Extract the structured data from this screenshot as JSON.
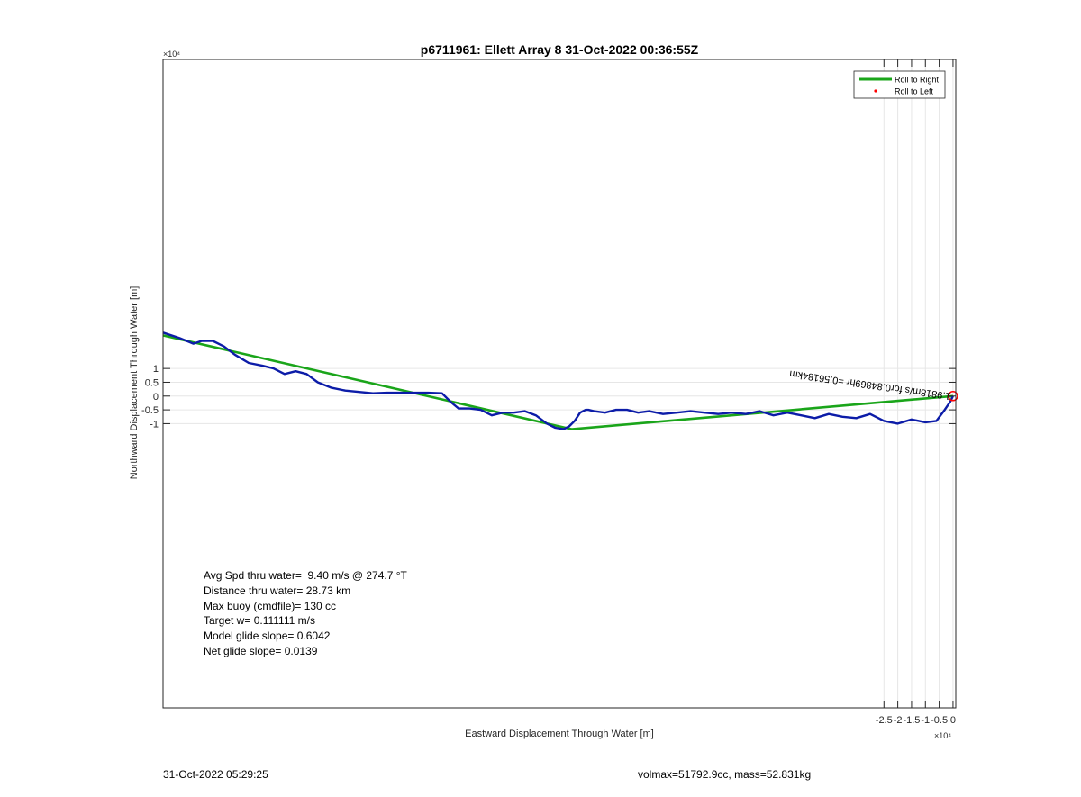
{
  "chart_data": {
    "type": "line",
    "title": "p6711961: Ellett Array 8 31-Oct-2022 00:36:55Z",
    "xlabel": "Eastward Displacement Through Water [m]",
    "ylabel": "Northward Displacement Through Water [m]",
    "xlim": [
      -28.6,
      0.1
    ],
    "ylim": [
      -11.3,
      12.2
    ],
    "axis_multiplier": "×10⁴",
    "x_axis_multiplier": "×10⁴",
    "y_axis_multiplier": "×10⁴",
    "xticks": [
      -2.5,
      -2,
      -1.5,
      -1,
      -0.5,
      0
    ],
    "xtick_labels": [
      "-2.5",
      "-2",
      "-1.5",
      "-1",
      "-0.5",
      "0"
    ],
    "yticks": [
      -1,
      -0.5,
      0,
      0.5,
      1
    ],
    "ytick_labels": [
      "-1",
      "-0.5",
      "0",
      "0.5",
      "1"
    ],
    "grid": true,
    "legend": {
      "placement": "top-right",
      "entries": [
        {
          "name": "Roll to Right",
          "color": "#1aa51a",
          "style": "line"
        },
        {
          "name": "Roll to Left",
          "color": "#ff0000",
          "style": "point"
        }
      ]
    },
    "series": [
      {
        "role": "dead-reckoned track",
        "color": "#1aa51a",
        "x": [
          -28.6,
          -13.8,
          0.0
        ],
        "y": [
          2.2,
          -1.2,
          0.0
        ]
      },
      {
        "role": "measured track",
        "color": "#0c1ca8",
        "x": [
          -28.6,
          -28.0,
          -27.5,
          -27.2,
          -26.8,
          -26.4,
          -26.0,
          -25.5,
          -25.0,
          -24.6,
          -24.2,
          -23.8,
          -23.4,
          -23.0,
          -22.5,
          -22.0,
          -21.5,
          -21.0,
          -20.5,
          -20.0,
          -19.5,
          -19.0,
          -18.5,
          -18.2,
          -17.9,
          -17.5,
          -17.1,
          -16.7,
          -16.3,
          -15.9,
          -15.5,
          -15.1,
          -14.7,
          -14.4,
          -14.1,
          -13.9,
          -13.7,
          -13.5,
          -13.3,
          -13.2,
          -13.0,
          -12.6,
          -12.2,
          -11.8,
          -11.4,
          -11.0,
          -10.5,
          -10.0,
          -9.5,
          -9.0,
          -8.5,
          -8.0,
          -7.5,
          -7.0,
          -6.5,
          -6.0,
          -5.5,
          -5.0,
          -4.5,
          -4.0,
          -3.5,
          -3.0,
          -2.5,
          -2.0,
          -1.5,
          -1.0,
          -0.6,
          -0.3,
          -0.1,
          0.0
        ],
        "y": [
          2.3,
          2.1,
          1.9,
          2.0,
          2.0,
          1.8,
          1.5,
          1.2,
          1.1,
          1.0,
          0.8,
          0.9,
          0.8,
          0.5,
          0.3,
          0.2,
          0.15,
          0.1,
          0.12,
          0.12,
          0.12,
          0.12,
          0.1,
          -0.2,
          -0.45,
          -0.45,
          -0.5,
          -0.7,
          -0.6,
          -0.6,
          -0.55,
          -0.7,
          -1.0,
          -1.15,
          -1.2,
          -1.1,
          -0.9,
          -0.6,
          -0.5,
          -0.5,
          -0.55,
          -0.6,
          -0.5,
          -0.5,
          -0.6,
          -0.55,
          -0.65,
          -0.6,
          -0.55,
          -0.6,
          -0.65,
          -0.6,
          -0.65,
          -0.55,
          -0.7,
          -0.6,
          -0.7,
          -0.8,
          -0.65,
          -0.75,
          -0.8,
          -0.65,
          -0.9,
          -1.0,
          -0.85,
          -0.95,
          -0.9,
          -0.5,
          -0.2,
          0.0
        ]
      }
    ],
    "end_marker": {
      "x": 0.0,
      "y": 0.0,
      "color": "#ff0000",
      "shape": "circle"
    },
    "rotated_annotation": "1.9818m/s for0.84869hr =0.56184km",
    "annotation_origin": {
      "x": 0.0,
      "y": 0.0,
      "angle_deg": 188
    },
    "stats": [
      "Avg Spd thru water=  9.40 m/s @ 274.7 °T",
      "Distance thru water= 28.73 km",
      "Max buoy (cmdfile)= 130 cc",
      "Target w= 0.111111 m/s",
      "Model glide slope= 0.6042",
      "Net glide slope= 0.0139"
    ]
  },
  "footer": {
    "timestamp": "31-Oct-2022 05:29:25",
    "volmax_mass": "volmax=51792.9cc, mass=52.831kg"
  }
}
